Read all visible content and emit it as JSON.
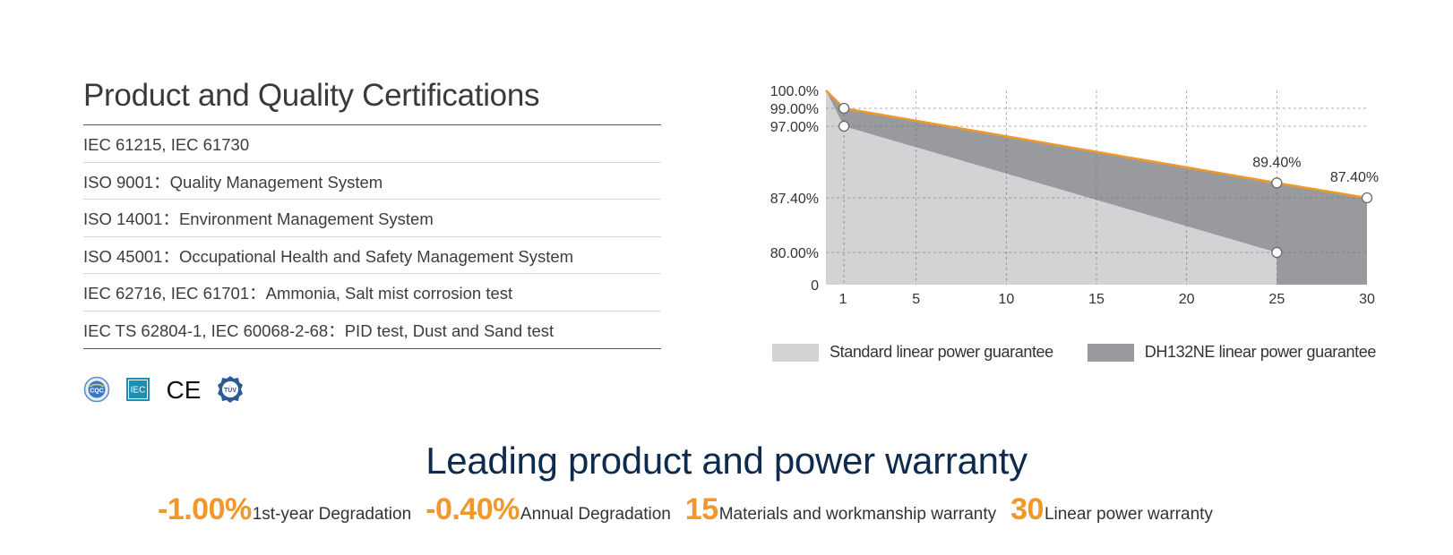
{
  "certifications": {
    "title": "Product and Quality Certifications",
    "items": [
      "IEC 61215, IEC 61730",
      "ISO 9001：Quality Management System",
      "ISO 14001：Environment Management System",
      "ISO 45001：Occupational Health and Safety Management System",
      "IEC 62716, IEC 61701：Ammonia, Salt mist corrosion test",
      "IEC TS 62804-1, IEC 60068-2-68：PID test, Dust and Sand test"
    ],
    "logos": [
      {
        "icon": "cqc-logo-icon",
        "text": "CQC"
      },
      {
        "icon": "iec-logo-icon",
        "text": "IEC"
      },
      {
        "icon": "ce-mark-icon",
        "text": "CE"
      },
      {
        "icon": "tuv-logo-icon",
        "text": "TÜV"
      }
    ]
  },
  "chart_data": {
    "type": "area",
    "x_ticks": [
      1,
      5,
      10,
      15,
      20,
      25,
      30
    ],
    "x_range": [
      0,
      30
    ],
    "y_ticks": [
      {
        "value": 100,
        "label": "100.0%"
      },
      {
        "value": 99,
        "label": "99.00%"
      },
      {
        "value": 97,
        "label": "97.00%"
      },
      {
        "value": 87.4,
        "label": "87.40%"
      },
      {
        "value": 80,
        "label": "80.00%"
      },
      {
        "value": 0,
        "label": "0"
      }
    ],
    "series": [
      {
        "name": "Standard linear power guarantee",
        "color": "#d1d3d4",
        "points": [
          [
            0,
            100
          ],
          [
            1,
            97
          ],
          [
            25,
            80
          ]
        ]
      },
      {
        "name": "DH132NE linear power guarantee",
        "color": "#999a9d",
        "line_color": "#f0982b",
        "points": [
          [
            0,
            100
          ],
          [
            1,
            99
          ],
          [
            25,
            89.4
          ],
          [
            30,
            87.4
          ]
        ]
      }
    ],
    "markers": [
      [
        1,
        99
      ],
      [
        1,
        97
      ],
      [
        25,
        89.4
      ],
      [
        25,
        80
      ],
      [
        30,
        87.4
      ]
    ],
    "data_labels": [
      {
        "x": 25,
        "y": 89.4,
        "text": "89.40%"
      },
      {
        "x": 30,
        "y": 87.4,
        "text": "87.40%"
      }
    ],
    "grid": true,
    "legend": "bottom"
  },
  "warranty": {
    "title": "Leading product and power warranty",
    "stats": [
      {
        "value": "-1.00%",
        "label": "1st-year Degradation"
      },
      {
        "value": "-0.40%",
        "label": "Annual Degradation"
      },
      {
        "value": "15",
        "label": "Materials and workmanship warranty"
      },
      {
        "value": "30",
        "label": "Linear power warranty"
      }
    ]
  }
}
